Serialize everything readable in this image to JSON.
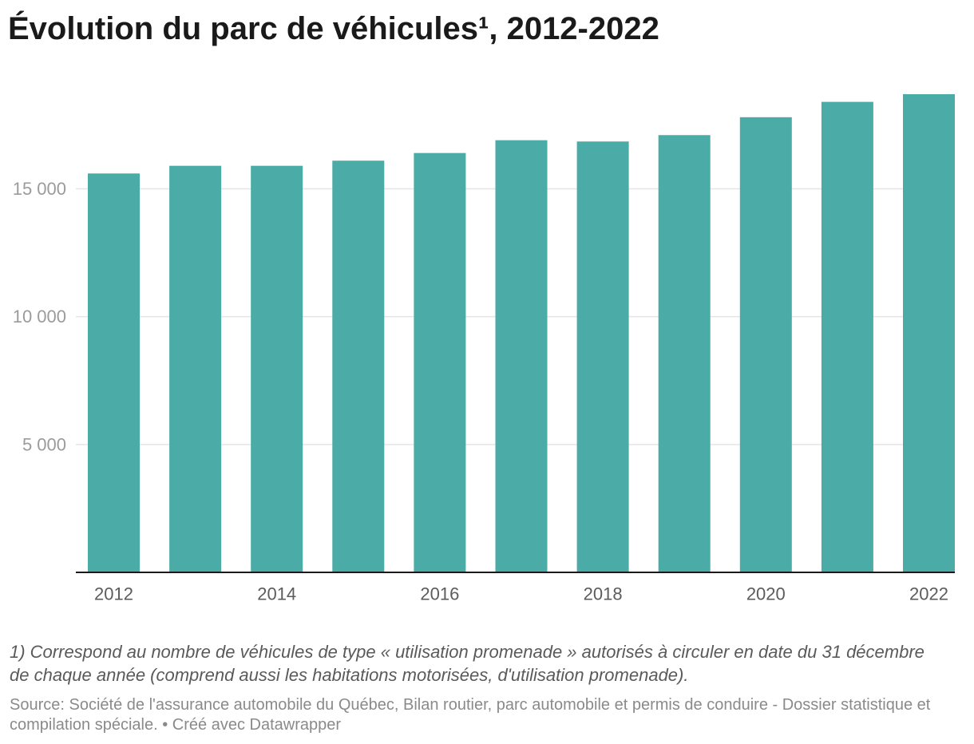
{
  "notes": "1) Correspond au nombre de véhicules de type « utilisation promenade » autorisés à circuler en date du 31 décembre de chaque année (comprend aussi les habitations motorisées, d'utilisation promenade).",
  "footer": {
    "source_label": "Source:",
    "source": "Société de l'assurance automobile du Québec, Bilan routier, parc automobile et permis de conduire - Dossier statistique et compilation spéciale.",
    "separator": "•",
    "credit": "Créé avec Datawrapper"
  },
  "colors": {
    "bar": "#4aaba7",
    "grid": "#e5e5e5",
    "axis": "#1a1a1a"
  },
  "chart_data": {
    "type": "bar",
    "title": "Évolution du parc de véhicules¹, 2012-2022",
    "x": [
      2012,
      2013,
      2014,
      2015,
      2016,
      2017,
      2018,
      2019,
      2020,
      2021,
      2022
    ],
    "values": [
      15600,
      15900,
      15900,
      16100,
      16400,
      16900,
      16850,
      17100,
      17800,
      18400,
      18700
    ],
    "ylim": [
      0,
      18700
    ],
    "yticks": [
      5000,
      10000,
      15000
    ],
    "ytick_labels": [
      "5 000",
      "10 000",
      "15 000"
    ],
    "xtick_labels": [
      "2012",
      "2014",
      "2016",
      "2018",
      "2020",
      "2022"
    ],
    "grid": true
  }
}
